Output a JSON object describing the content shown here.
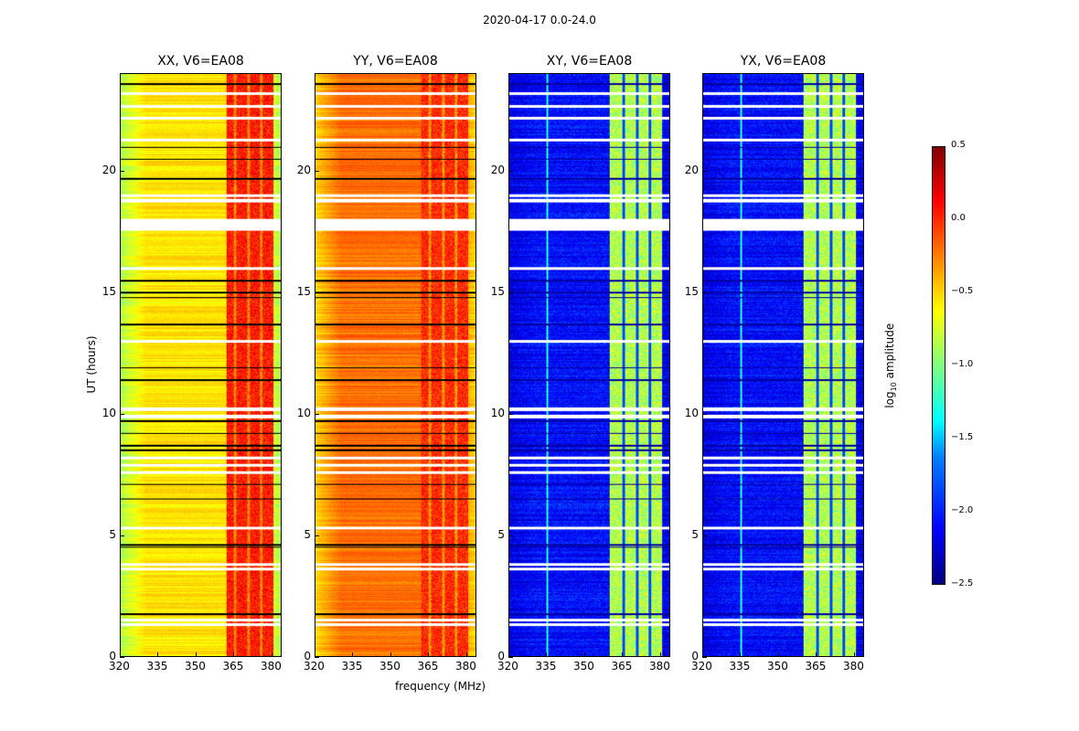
{
  "chart_data": {
    "type": "heatmap",
    "title": "2020-04-17 0.0-24.0",
    "xlabel": "frequency (MHz)",
    "ylabel": "UT (hours)",
    "xlim": [
      320,
      384
    ],
    "ylim": [
      0,
      24
    ],
    "xticks": [
      "320",
      "335",
      "350",
      "365",
      "380"
    ],
    "yticks": [
      "0",
      "5",
      "10",
      "15",
      "20"
    ],
    "colormap": "jet",
    "colorbar": {
      "label": "log10 amplitude",
      "label_main": "log",
      "label_sub": "10",
      "label_rest": " amplitude",
      "range": [
        -2.5,
        0.5
      ],
      "ticks": [
        "0.5",
        "0.0",
        "−0.5",
        "−1.0",
        "−1.5",
        "−2.0",
        "−2.5"
      ],
      "tick_values": [
        0.5,
        0,
        -0.5,
        -1,
        -1.5,
        -2,
        -2.5
      ]
    },
    "panels": [
      {
        "title": "XX, V6=EA08",
        "base": -0.55,
        "edge": -0.85,
        "rfi": 0.05,
        "rfi_range": [
          362,
          381
        ]
      },
      {
        "title": "YY, V6=EA08",
        "base": -0.2,
        "edge": -0.5,
        "rfi": 0.0,
        "rfi_range": [
          362,
          381
        ]
      },
      {
        "title": "XY, V6=EA08",
        "base": -2.1,
        "edge": -2.2,
        "rfi": -0.85,
        "rfi_range": [
          360,
          381
        ]
      },
      {
        "title": "YX, V6=EA08",
        "base": -2.1,
        "edge": -2.2,
        "rfi": -0.85,
        "rfi_range": [
          360,
          381
        ]
      }
    ],
    "flagged_hours": [
      1.3,
      1.5,
      3.6,
      3.8,
      5.3,
      7.6,
      7.9,
      8.2,
      9.9,
      10.2,
      13.0,
      16.0,
      17.6,
      17.8,
      18.0,
      18.8,
      19.0,
      21.3,
      22.2,
      22.7,
      23.2
    ],
    "dark_rows_hours": [
      1.75,
      4.5,
      4.6,
      6.5,
      7.1,
      8.5,
      8.7,
      9.2,
      9.7,
      11.4,
      11.9,
      13.7,
      14.8,
      15.0,
      15.5,
      19.7,
      20.5,
      21.0,
      23.6
    ]
  }
}
